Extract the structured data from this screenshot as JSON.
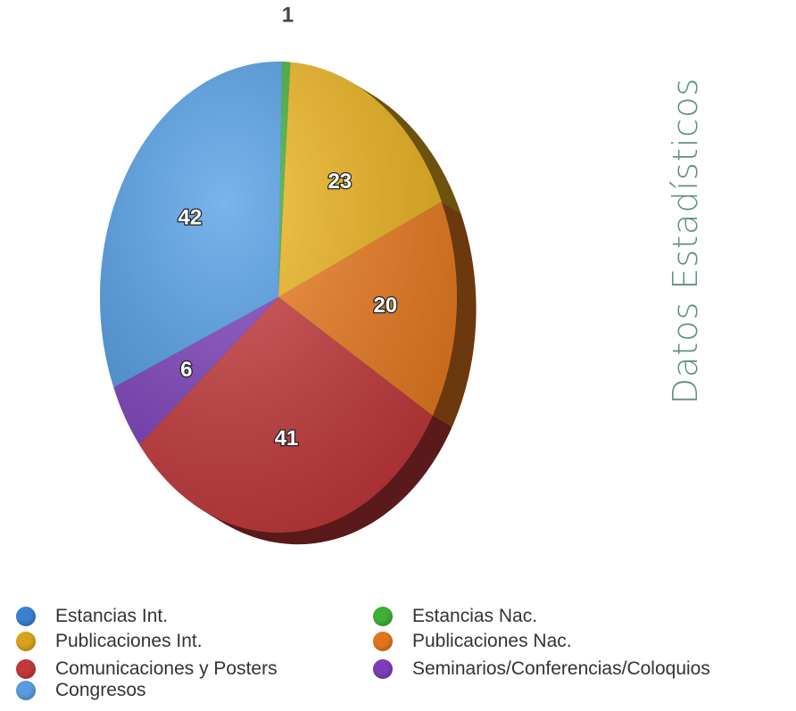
{
  "chart_data": {
    "type": "pie",
    "title": "Datos Estadísticos",
    "slices": [
      {
        "label": "Estancias Nac.",
        "value": 1,
        "color": "#3db035"
      },
      {
        "label": "Publicaciones Int.",
        "value": 23,
        "color": "#f2b71c"
      },
      {
        "label": "Publicaciones Nac.",
        "value": 20,
        "color": "#f07d1e"
      },
      {
        "label": "Comunicaciones y Posters",
        "value": 41,
        "color": "#c9393c"
      },
      {
        "label": "Seminarios/Conferencias/Coloquios",
        "value": 6,
        "color": "#7d3fbf"
      },
      {
        "label": "Congresos",
        "value": 42,
        "color": "#4d9be6"
      }
    ]
  },
  "legend": [
    {
      "label": "Estancias Int.",
      "color": "#3a7fd0"
    },
    {
      "label": "Estancias Nac.",
      "color": "#3db035"
    },
    {
      "label": "Publicaciones Int.",
      "color": "#d9a21a"
    },
    {
      "label": "Publicaciones Nac.",
      "color": "#e0761c"
    },
    {
      "label": "Comunicaciones y Posters",
      "color": "#c0393b"
    },
    {
      "label": "Seminarios/Conferencias/Coloquios",
      "color": "#7b3db8"
    },
    {
      "label": "Congresos",
      "color": "#5b9be0"
    }
  ]
}
